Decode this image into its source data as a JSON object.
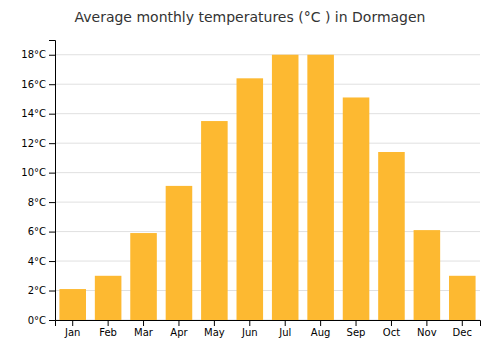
{
  "chart_data": {
    "type": "bar",
    "title": "Average monthly temperatures (°C ) in Dormagen",
    "categories": [
      "Jan",
      "Feb",
      "Mar",
      "Apr",
      "May",
      "Jun",
      "Jul",
      "Aug",
      "Sep",
      "Oct",
      "Nov",
      "Dec"
    ],
    "values": [
      2.1,
      3.0,
      5.9,
      9.1,
      13.5,
      16.4,
      18.0,
      18.0,
      15.1,
      11.4,
      6.1,
      3.0
    ],
    "color": "#FDB931",
    "ylim": [
      0,
      19
    ],
    "yticks": [
      {
        "value": 0,
        "label": "0°C"
      },
      {
        "value": 2,
        "label": "2°C"
      },
      {
        "value": 4,
        "label": "4°C"
      },
      {
        "value": 6,
        "label": "6°C"
      },
      {
        "value": 8,
        "label": "8°C"
      },
      {
        "value": 10,
        "label": "10°C"
      },
      {
        "value": 12,
        "label": "12°C"
      },
      {
        "value": 14,
        "label": "14°C"
      },
      {
        "value": 16,
        "label": "16°C"
      },
      {
        "value": 18,
        "label": "18°C"
      }
    ],
    "grid": true
  }
}
